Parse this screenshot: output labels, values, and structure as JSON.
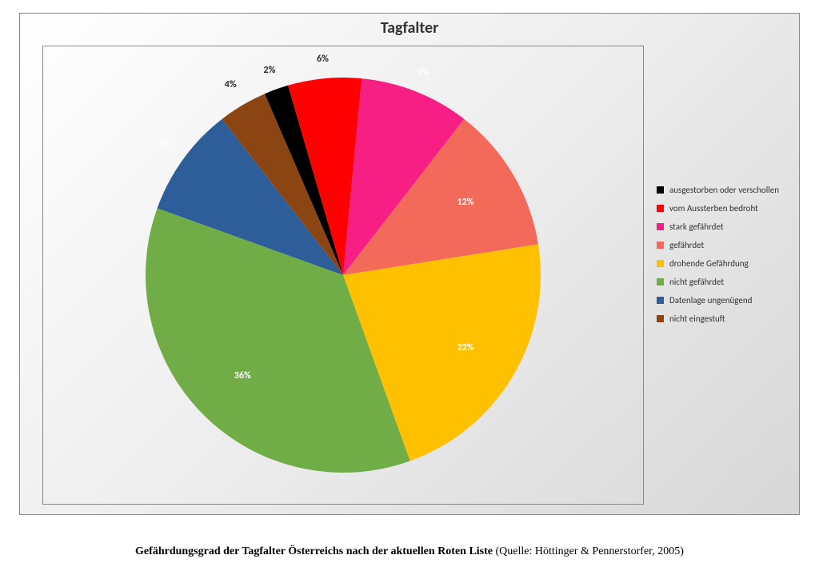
{
  "chart": {
    "type": "pie",
    "title": "Tagfalter",
    "title_fontsize": 20,
    "title_color": "#333333",
    "frame_border_color": "#888888",
    "frame_bg_gradient": [
      "#ffffff",
      "#ededed",
      "#d7d7d7"
    ],
    "plot_border_color": "#888888",
    "pie_diameter": 494,
    "start_angle_deg": -23.4,
    "direction": "clockwise",
    "slices": [
      {
        "label": "ausgestorben oder verschollen",
        "value": 2,
        "pct_text": "2%",
        "color": "#000000",
        "label_color": "#262626",
        "label_radius_factor": 1.1
      },
      {
        "label": "vom Aussterben bedroht",
        "value": 6,
        "pct_text": "6%",
        "color": "#ff0000",
        "label_color": "#262626",
        "label_radius_factor": 1.1
      },
      {
        "label": "stark gefährdet",
        "value": 9,
        "pct_text": "9%",
        "color": "#f71e84",
        "label_color": "#ffffff",
        "label_radius_factor": 1.1
      },
      {
        "label": "gefährdet",
        "value": 12,
        "pct_text": "12%",
        "color": "#f46a5a",
        "label_color": "#ffffff",
        "label_radius_factor": 0.72
      },
      {
        "label": "drohende Gefährdung",
        "value": 22,
        "pct_text": "22%",
        "color": "#ffc000",
        "label_color": "#ffffff",
        "label_radius_factor": 0.72
      },
      {
        "label": "nicht gefährdet",
        "value": 36,
        "pct_text": "36%",
        "color": "#71ad47",
        "label_color": "#ffffff",
        "label_radius_factor": 0.72
      },
      {
        "label": "Datenlage ungenügend",
        "value": 9,
        "pct_text": "9%",
        "color": "#2d5e9a",
        "label_color": "#ffffff",
        "label_radius_factor": 1.12
      },
      {
        "label": "nicht eingestuft",
        "value": 4,
        "pct_text": "4%",
        "color": "#8b4513",
        "label_color": "#262626",
        "label_radius_factor": 1.12
      }
    ],
    "legend": {
      "fontsize": 11,
      "swatch_size": 9,
      "row_gap": 10,
      "text_color": "#333333"
    }
  },
  "caption": {
    "bold_part": "Gefährdungsgrad der Tagfalter Österreichs nach der aktuellen Roten Liste",
    "normal_part": " (Quelle: Höttinger & Pennerstorfer, 2005)",
    "font_family": "Times New Roman",
    "fontsize": 14
  }
}
